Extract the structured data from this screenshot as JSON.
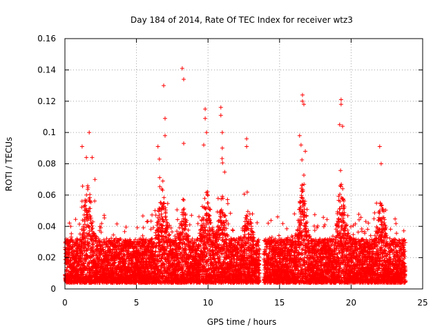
{
  "chart_data": {
    "type": "scatter",
    "title": "Day 184 of 2014, Rate Of TEC Index for receiver wtz3",
    "xlabel": "GPS time / hours",
    "ylabel": "ROTI / TECUs",
    "xlim": [
      0,
      25
    ],
    "ylim": [
      0,
      0.16
    ],
    "xticks": [
      0,
      5,
      10,
      15,
      20,
      25
    ],
    "yticks": [
      0,
      0.02,
      0.04,
      0.06,
      0.08,
      0.1,
      0.12,
      0.14,
      0.16
    ],
    "xtick_labels": [
      "0",
      "5",
      "10",
      "15",
      "20",
      "25"
    ],
    "ytick_labels": [
      "0",
      "0.02",
      "0.04",
      "0.06",
      "0.08",
      "0.1",
      "0.12",
      "0.14",
      "0.16"
    ],
    "grid": true,
    "marker": "+",
    "color": "#ff0000",
    "data_gap_hours": [
      13.6,
      13.9
    ],
    "x_range_hours": [
      0,
      23.8
    ],
    "bulk_range": [
      0.004,
      0.045
    ],
    "outliers": [
      {
        "x": 1.2,
        "y": 0.091
      },
      {
        "x": 1.5,
        "y": 0.084
      },
      {
        "x": 1.7,
        "y": 0.1
      },
      {
        "x": 1.9,
        "y": 0.084
      },
      {
        "x": 2.1,
        "y": 0.07
      },
      {
        "x": 6.5,
        "y": 0.091
      },
      {
        "x": 6.6,
        "y": 0.083
      },
      {
        "x": 6.9,
        "y": 0.13
      },
      {
        "x": 7.0,
        "y": 0.109
      },
      {
        "x": 7.0,
        "y": 0.098
      },
      {
        "x": 8.2,
        "y": 0.141
      },
      {
        "x": 8.3,
        "y": 0.134
      },
      {
        "x": 8.3,
        "y": 0.093
      },
      {
        "x": 9.7,
        "y": 0.092
      },
      {
        "x": 9.8,
        "y": 0.115
      },
      {
        "x": 9.8,
        "y": 0.109
      },
      {
        "x": 9.9,
        "y": 0.1
      },
      {
        "x": 10.9,
        "y": 0.116
      },
      {
        "x": 10.9,
        "y": 0.111
      },
      {
        "x": 11.0,
        "y": 0.1
      },
      {
        "x": 11.0,
        "y": 0.09
      },
      {
        "x": 12.7,
        "y": 0.096
      },
      {
        "x": 12.7,
        "y": 0.091
      },
      {
        "x": 16.4,
        "y": 0.098
      },
      {
        "x": 16.5,
        "y": 0.092
      },
      {
        "x": 16.6,
        "y": 0.124
      },
      {
        "x": 16.6,
        "y": 0.12
      },
      {
        "x": 16.7,
        "y": 0.118
      },
      {
        "x": 16.8,
        "y": 0.088
      },
      {
        "x": 19.2,
        "y": 0.105
      },
      {
        "x": 19.3,
        "y": 0.121
      },
      {
        "x": 19.3,
        "y": 0.118
      },
      {
        "x": 19.4,
        "y": 0.104
      },
      {
        "x": 22.0,
        "y": 0.091
      },
      {
        "x": 22.1,
        "y": 0.08
      }
    ]
  }
}
